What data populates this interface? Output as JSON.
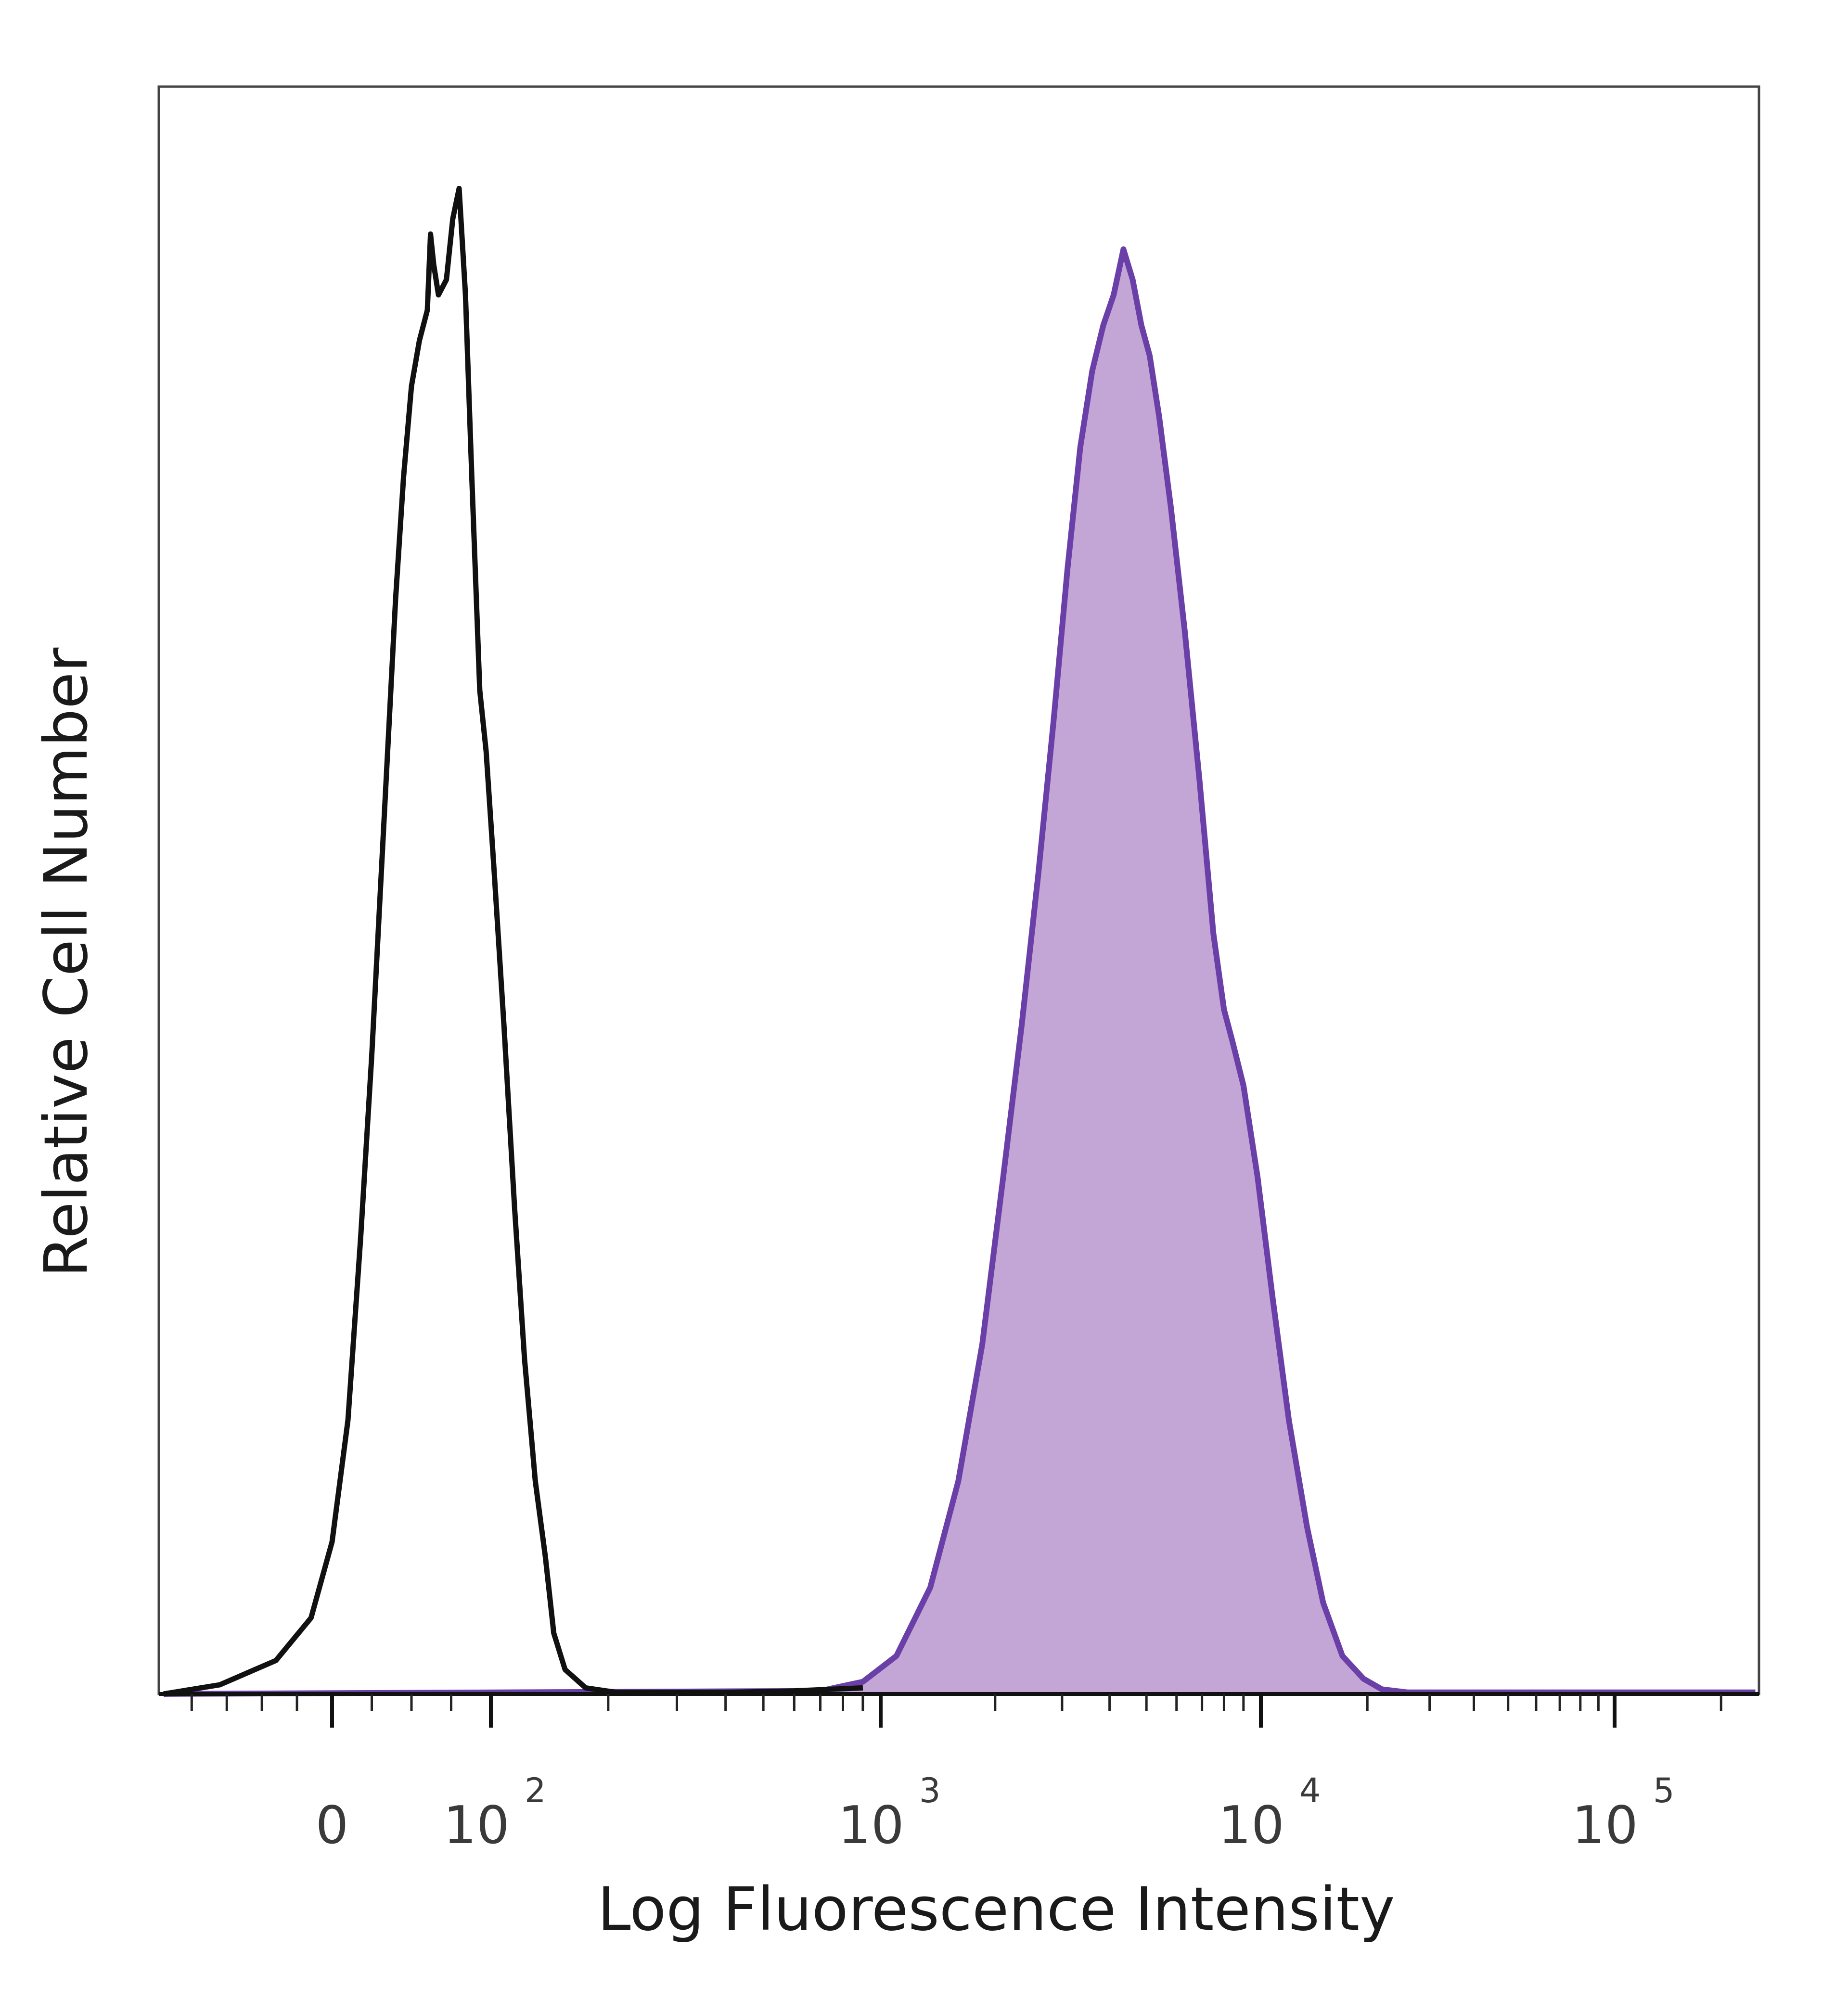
{
  "chart_data": {
    "type": "area",
    "xlabel": "Log Fluorescence Intensity",
    "ylabel": "Relative Cell Number",
    "x_scale": "biexponential",
    "x_ticks": [
      {
        "value": 0,
        "base": "0",
        "exp": ""
      },
      {
        "value": 100,
        "base": "10",
        "exp": "2"
      },
      {
        "value": 1000,
        "base": "10",
        "exp": "3"
      },
      {
        "value": 10000,
        "base": "10",
        "exp": "4"
      },
      {
        "value": 100000,
        "base": "10",
        "exp": "5"
      }
    ],
    "xlim": [
      -120,
      250000
    ],
    "ylim": [
      0,
      100
    ],
    "series": [
      {
        "style": "outline",
        "color": "#111111",
        "points": [
          [
            -120,
            0
          ],
          [
            -80,
            0.6
          ],
          [
            -40,
            2.2
          ],
          [
            -15,
            5
          ],
          [
            0,
            10
          ],
          [
            10,
            18
          ],
          [
            18,
            30
          ],
          [
            25,
            42
          ],
          [
            30,
            52
          ],
          [
            35,
            62
          ],
          [
            40,
            72
          ],
          [
            45,
            80
          ],
          [
            50,
            86
          ],
          [
            55,
            89
          ],
          [
            60,
            91
          ],
          [
            62,
            96
          ],
          [
            64,
            94
          ],
          [
            67,
            92
          ],
          [
            72,
            93
          ],
          [
            76,
            97
          ],
          [
            80,
            99
          ],
          [
            84,
            92
          ],
          [
            88,
            80
          ],
          [
            93,
            66
          ],
          [
            97,
            62
          ],
          [
            102,
            54
          ],
          [
            108,
            44
          ],
          [
            115,
            32
          ],
          [
            122,
            22
          ],
          [
            130,
            14
          ],
          [
            138,
            9
          ],
          [
            145,
            4
          ],
          [
            155,
            1.6
          ],
          [
            175,
            0.4
          ],
          [
            210,
            0.1
          ],
          [
            400,
            0.1
          ],
          [
            600,
            0.2
          ],
          [
            900,
            0.4
          ]
        ]
      },
      {
        "style": "filled",
        "color": "#6a3fa7",
        "fill": "#c3a6d6",
        "points": [
          [
            -120,
            0
          ],
          [
            700,
            0.2
          ],
          [
            900,
            0.8
          ],
          [
            1100,
            2.5
          ],
          [
            1350,
            7
          ],
          [
            1600,
            14
          ],
          [
            1850,
            23
          ],
          [
            2100,
            34
          ],
          [
            2350,
            44
          ],
          [
            2600,
            54
          ],
          [
            2850,
            64
          ],
          [
            3100,
            74
          ],
          [
            3350,
            82
          ],
          [
            3600,
            87
          ],
          [
            3850,
            90
          ],
          [
            4100,
            92
          ],
          [
            4350,
            95
          ],
          [
            4600,
            93
          ],
          [
            4850,
            90
          ],
          [
            5100,
            88
          ],
          [
            5400,
            84
          ],
          [
            5800,
            78
          ],
          [
            6300,
            70
          ],
          [
            6900,
            60
          ],
          [
            7500,
            50
          ],
          [
            8000,
            45
          ],
          [
            8400,
            43
          ],
          [
            9000,
            40
          ],
          [
            9800,
            34
          ],
          [
            10800,
            26
          ],
          [
            12000,
            18
          ],
          [
            13500,
            11
          ],
          [
            15000,
            6
          ],
          [
            17000,
            2.5
          ],
          [
            19500,
            1
          ],
          [
            22000,
            0.3
          ],
          [
            26000,
            0.1
          ],
          [
            250000,
            0.1
          ]
        ]
      }
    ]
  }
}
